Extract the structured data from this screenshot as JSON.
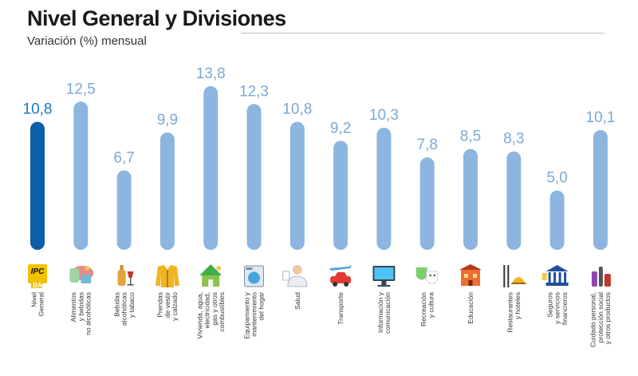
{
  "header": {
    "title": "Nivel General y Divisiones",
    "subtitle": "Variación (%) mensual"
  },
  "colors": {
    "highlight_bar": "#0a5fa6",
    "bar": "#8cb6e0",
    "highlight_label": "#1878c4",
    "label": "#7aa9d6"
  },
  "chart_data": {
    "type": "bar",
    "title": "Nivel General y Divisiones",
    "subtitle": "Variación (%) mensual",
    "xlabel": "",
    "ylabel": "",
    "ylim": [
      0,
      14
    ],
    "grid": false,
    "categories": [
      [
        "Nivel",
        "General"
      ],
      [
        "Alimentos",
        "y bebidas",
        "no alcohólicas"
      ],
      [
        "Bebidas",
        "alcohólicas",
        "y tabaco"
      ],
      [
        "Prendas",
        "de vestir",
        "y calzado"
      ],
      [
        "Vivienda, agua,",
        "electricidad,",
        "gas y otros",
        "combustibles"
      ],
      [
        "Equipamiento y",
        "mantenimiento",
        "del hogar"
      ],
      [
        "Salud"
      ],
      [
        "Transporte"
      ],
      [
        "Información y",
        "comunicación"
      ],
      [
        "Recreación",
        "y cultura"
      ],
      [
        "Educación"
      ],
      [
        "Restaurantes",
        "y hoteles"
      ],
      [
        "Seguros",
        "y servicios",
        "financieros"
      ],
      [
        "Cuidado personal,",
        "protección social",
        "y otros productos"
      ]
    ],
    "values": [
      10.8,
      12.5,
      6.7,
      9.9,
      13.8,
      12.3,
      10.8,
      9.2,
      10.3,
      7.8,
      8.5,
      8.3,
      5.0,
      10.1
    ],
    "value_labels": [
      "10,8",
      "12,5",
      "6,7",
      "9,9",
      "13,8",
      "12,3",
      "10,8",
      "9,2",
      "10,3",
      "7,8",
      "8,5",
      "8,3",
      "5,0",
      "10,1"
    ],
    "highlight_index": 0,
    "icons": [
      "ipc-ba-logo-icon",
      "food-basket-icon",
      "wine-bottle-icon",
      "jacket-icon",
      "house-icon",
      "washing-machine-icon",
      "doctor-icon",
      "car-plane-icon",
      "computer-icon",
      "theater-masks-icon",
      "school-building-icon",
      "cutlery-icon",
      "bank-icon",
      "cosmetics-icon"
    ],
    "logo_text": [
      "IPC",
      "BA"
    ]
  }
}
